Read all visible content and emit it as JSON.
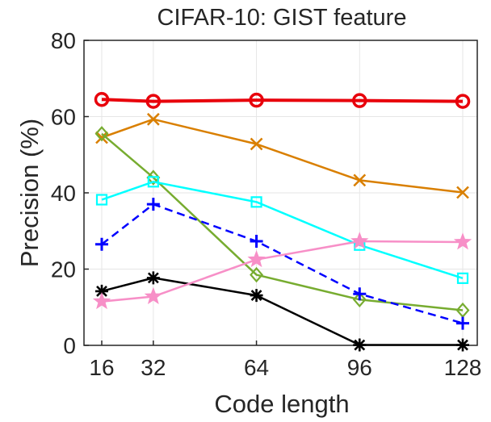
{
  "chart_data": {
    "type": "line",
    "title": "CIFAR-10: GIST feature",
    "xlabel": "Code length",
    "ylabel": "Precision (%)",
    "x": [
      16,
      32,
      64,
      96,
      128
    ],
    "xticks": [
      16,
      32,
      64,
      96,
      128
    ],
    "yticks": [
      0,
      20,
      40,
      60,
      80
    ],
    "xlim": [
      16,
      128
    ],
    "ylim": [
      0,
      80
    ],
    "grid": true,
    "series": [
      {
        "color": "#e8000b",
        "marker": "circle",
        "dash": "solid",
        "width": 4,
        "values": [
          64.5,
          64.0,
          64.3,
          64.2,
          64.0
        ]
      },
      {
        "color": "#d97f00",
        "marker": "x",
        "dash": "solid",
        "width": 2.5,
        "values": [
          54.5,
          59.3,
          52.8,
          43.3,
          40.1
        ]
      },
      {
        "color": "#77ac30",
        "marker": "diamond",
        "dash": "solid",
        "width": 2.5,
        "values": [
          55.5,
          44.0,
          18.5,
          12.0,
          9.2
        ]
      },
      {
        "color": "#00ffff",
        "marker": "square",
        "dash": "solid",
        "width": 2.5,
        "values": [
          38.2,
          42.9,
          37.6,
          26.3,
          17.6
        ]
      },
      {
        "color": "#0000ff",
        "marker": "plus",
        "dash": "dashed",
        "width": 2.5,
        "values": [
          26.5,
          37.0,
          27.3,
          13.5,
          5.8
        ]
      },
      {
        "color": "#000000",
        "marker": "asterisk",
        "dash": "solid",
        "width": 2.5,
        "values": [
          14.2,
          17.7,
          13.1,
          0.1,
          0.1
        ]
      },
      {
        "color": "#f78fc7",
        "marker": "star",
        "dash": "solid",
        "width": 2.5,
        "values": [
          11.5,
          12.8,
          22.5,
          27.3,
          27.1
        ]
      }
    ]
  }
}
